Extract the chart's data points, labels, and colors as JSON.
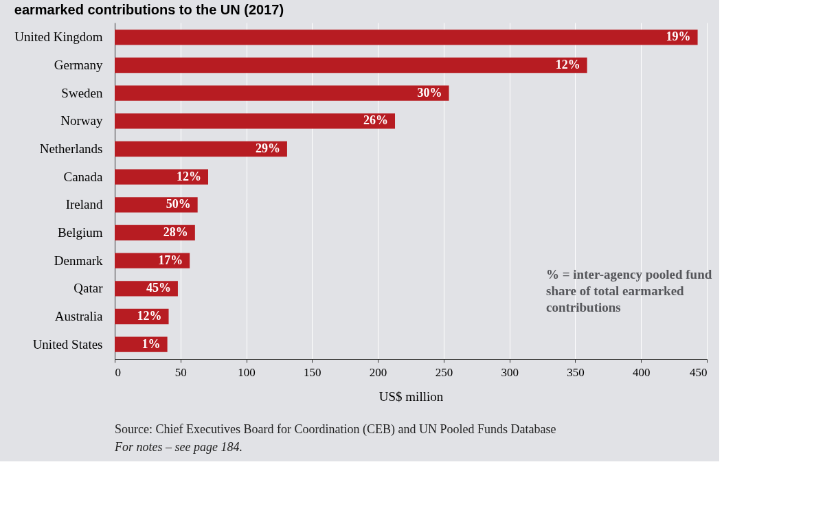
{
  "chart_data": {
    "type": "bar",
    "orientation": "horizontal",
    "title": "earmarked contributions to the UN (2017)",
    "categories": [
      "United Kingdom",
      "Germany",
      "Sweden",
      "Norway",
      "Netherlands",
      "Canada",
      "Ireland",
      "Belgium",
      "Denmark",
      "Qatar",
      "Australia",
      "United States"
    ],
    "series": [
      {
        "color": "#b71c22",
        "values": [
          443,
          359,
          254,
          213,
          131,
          71,
          63,
          61,
          57,
          48,
          41,
          40
        ]
      }
    ],
    "xlabel": "US$ million",
    "xlim": [
      0,
      450
    ],
    "xticks": [
      0,
      50,
      100,
      150,
      200,
      250,
      300,
      350,
      400,
      450
    ],
    "grid": "x",
    "legend": false,
    "annotations": [
      "% = inter-agency pooled fund share of total earmarked contributions",
      "Source: Chief Executives Board for Coordination (CEB)  and UN Pooled Funds Database",
      "For notes – see page 184.",
      {
        "text": "19%",
        "x": 443,
        "y": "United Kingdom"
      },
      {
        "text": "12%",
        "x": 359,
        "y": "Germany"
      },
      {
        "text": "30%",
        "x": 254,
        "y": "Sweden"
      },
      {
        "text": "26%",
        "x": 213,
        "y": "Norway"
      },
      {
        "text": "29%",
        "x": 131,
        "y": "Netherlands"
      },
      {
        "text": "12%",
        "x": 71,
        "y": "Canada"
      },
      {
        "text": "50%",
        "x": 63,
        "y": "Ireland"
      },
      {
        "text": "28%",
        "x": 61,
        "y": "Belgium"
      },
      {
        "text": "17%",
        "x": 57,
        "y": "Denmark"
      },
      {
        "text": "45%",
        "x": 48,
        "y": "Qatar"
      },
      {
        "text": "12%",
        "x": 41,
        "y": "Australia"
      },
      {
        "text": "1%",
        "x": 40,
        "y": "United States"
      }
    ]
  }
}
